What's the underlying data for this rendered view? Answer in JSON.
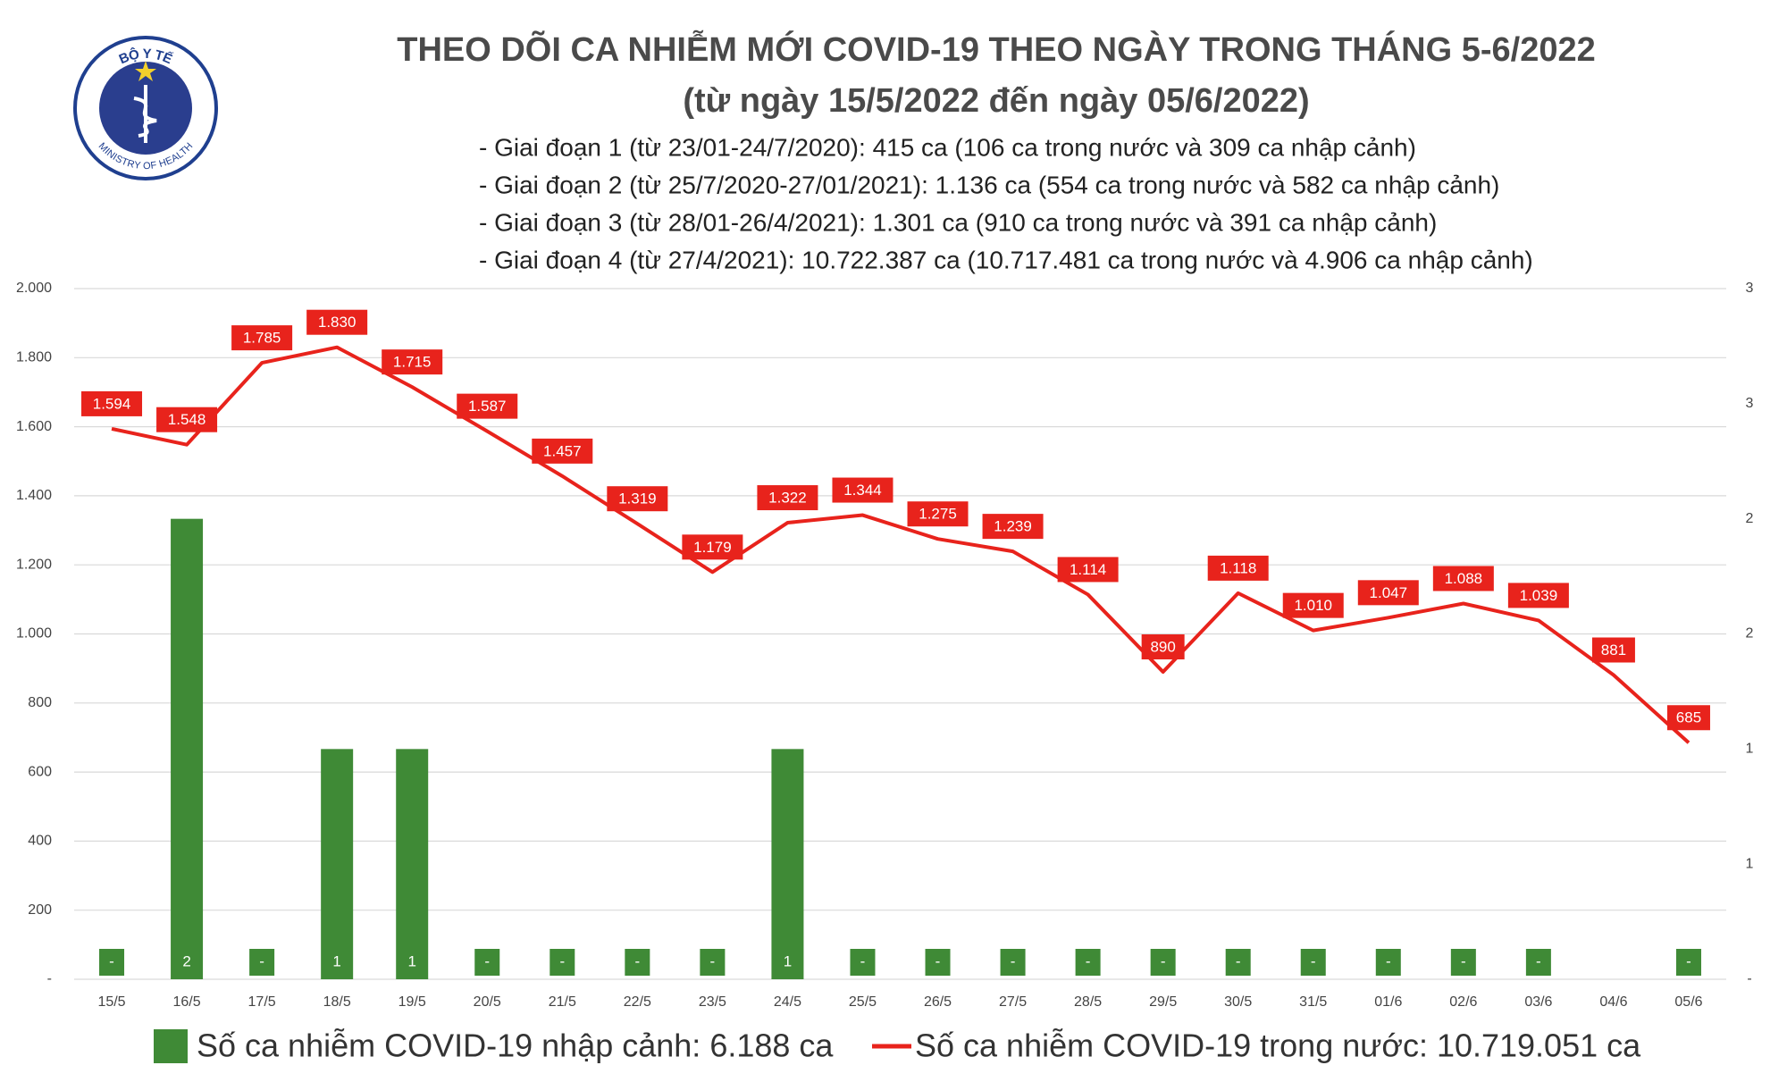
{
  "chart_data": {
    "type": "bar-line",
    "logo": {
      "top": "BỘ Y TẾ",
      "bottom": "MINISTRY OF HEALTH"
    },
    "title": "THEO DÕI CA NHIỄM MỚI COVID-19 THEO NGÀY TRONG THÁNG 5-6/2022",
    "subtitle": "(từ ngày 15/5/2022 đến ngày 05/6/2022)",
    "notes": [
      "- Giai đoạn 1 (từ 23/01-24/7/2020): 415 ca (106 ca trong nước và 309 ca nhập cảnh)",
      "- Giai đoạn 2 (từ 25/7/2020-27/01/2021): 1.136 ca (554 ca trong nước và 582 ca nhập cảnh)",
      "- Giai đoạn 3 (từ 28/01-26/4/2021): 1.301 ca (910 ca trong nước và 391 ca nhập cảnh)",
      "- Giai đoạn 4 (từ 27/4/2021): 10.722.387 ca (10.717.481 ca trong nước và 4.906 ca nhập cảnh)"
    ],
    "categories": [
      "15/5",
      "16/5",
      "17/5",
      "18/5",
      "19/5",
      "20/5",
      "21/5",
      "22/5",
      "23/5",
      "24/5",
      "25/5",
      "26/5",
      "27/5",
      "28/5",
      "29/5",
      "30/5",
      "31/5",
      "01/6",
      "02/6",
      "03/6",
      "04/6",
      "05/6"
    ],
    "series": [
      {
        "name": "Số ca nhiễm COVID-19 nhập cảnh: 6.188 ca",
        "color": "#3f8a36",
        "kind": "bar",
        "axis": "y2",
        "values": [
          0,
          2,
          0,
          1,
          1,
          0,
          0,
          0,
          0,
          1,
          0,
          0,
          0,
          0,
          0,
          0,
          0,
          0,
          0,
          0,
          null,
          0
        ],
        "value_labels": [
          "-",
          "2",
          "-",
          "1",
          "1",
          "-",
          "-",
          "-",
          "-",
          "1",
          "-",
          "-",
          "-",
          "-",
          "-",
          "-",
          "-",
          "-",
          "-",
          "-",
          null,
          "-"
        ]
      },
      {
        "name": "Số ca nhiễm COVID-19 trong nước: 10.719.051 ca",
        "color": "#e8231c",
        "kind": "line",
        "values": [
          1594,
          1548,
          1785,
          1830,
          1715,
          1587,
          1457,
          1319,
          1179,
          1322,
          1344,
          1275,
          1239,
          1114,
          890,
          1118,
          1010,
          1047,
          1088,
          1039,
          881,
          685
        ],
        "value_labels": [
          "1.594",
          "1.548",
          "1.785",
          "1.830",
          "1.715",
          "1.587",
          "1.457",
          "1.319",
          "1.179",
          "1.322",
          "1.344",
          "1.275",
          "1.239",
          "1.114",
          "890",
          "1.118",
          "1.010",
          "1.047",
          "1.088",
          "1.039",
          "881",
          "685"
        ]
      }
    ],
    "ylim": [
      0,
      2000
    ],
    "yticks": [
      {
        "value": 0,
        "label": "-"
      },
      200,
      400,
      600,
      800,
      {
        "value": 1000,
        "label": "1.000"
      },
      {
        "value": 1200,
        "label": "1.200"
      },
      {
        "value": 1400,
        "label": "1.400"
      },
      {
        "value": 1600,
        "label": "1.600"
      },
      {
        "value": 1800,
        "label": "1.800"
      },
      {
        "value": 2000,
        "label": "2.000"
      }
    ],
    "y2lim": [
      0,
      3
    ],
    "y2ticks": [
      {
        "value": 0,
        "label": "-"
      },
      {
        "value": 0.5,
        "label": "1"
      },
      {
        "value": 1,
        "label": "1"
      },
      {
        "value": 1.5,
        "label": "2"
      },
      {
        "value": 2,
        "label": "2"
      },
      {
        "value": 2.5,
        "label": "3"
      },
      {
        "value": 3,
        "label": "3"
      }
    ],
    "grid": true
  }
}
